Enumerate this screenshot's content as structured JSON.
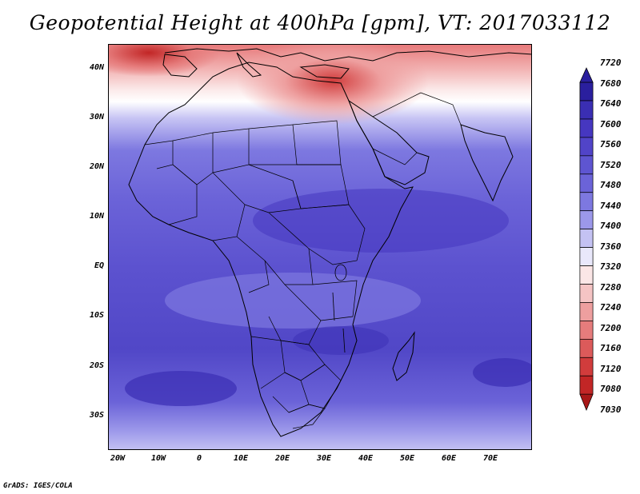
{
  "title": "Geopotential Height at 400hPa [gpm], VT: 2017033112",
  "footer": "GrADS: IGES/COLA",
  "lat_labels": [
    "40N",
    "30N",
    "20N",
    "10N",
    "EQ",
    "10S",
    "20S",
    "30S"
  ],
  "lon_labels": [
    "20W",
    "10W",
    "0",
    "10E",
    "20E",
    "30E",
    "40E",
    "50E",
    "60E",
    "70E"
  ],
  "colorbar": {
    "levels": [
      "7720",
      "7680",
      "7640",
      "7600",
      "7560",
      "7520",
      "7480",
      "7440",
      "7400",
      "7360",
      "7320",
      "7280",
      "7240",
      "7200",
      "7160",
      "7120",
      "7080",
      "7030"
    ],
    "colors": [
      "#2a1f9e",
      "#3a2eb3",
      "#4637c0",
      "#5144c8",
      "#5e55d1",
      "#6b63d8",
      "#7d78e0",
      "#9c98ea",
      "#c4c2f3",
      "#e9e8fb",
      "#fbe6e6",
      "#f5c4c4",
      "#ee9f9f",
      "#e67c7c",
      "#dc5a5a",
      "#d13c3c",
      "#c22626",
      "#a81818"
    ]
  },
  "colors": {
    "ocean_deep": "#4a3fc4",
    "land_mid": "#6b63d8",
    "warm_north": "#e67c7c",
    "coast": "#000000"
  }
}
